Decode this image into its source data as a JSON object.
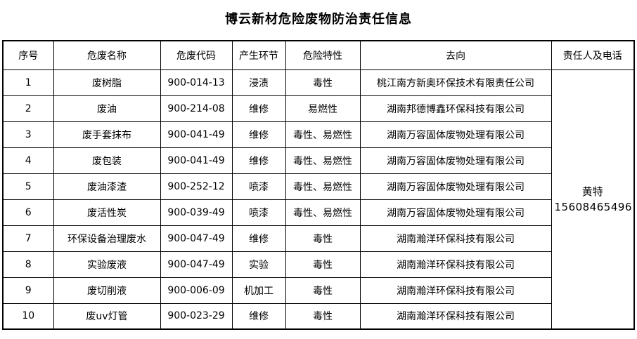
{
  "page": {
    "title": "博云新材危险废物防治责任信息"
  },
  "table": {
    "headers": {
      "no": "序号",
      "name": "危废名称",
      "code": "危废代码",
      "stage": "产生环节",
      "hazard": "危险特性",
      "destination": "去向",
      "contact": "责任人及电话"
    },
    "rows": [
      {
        "no": "1",
        "name": "废树脂",
        "code": "900-014-13",
        "stage": "浸渍",
        "hazard": "毒性",
        "destination": "桃江南方新奥环保技术有限责任公司"
      },
      {
        "no": "2",
        "name": "废油",
        "code": "900-214-08",
        "stage": "维修",
        "hazard": "易燃性",
        "destination": "湖南邦德博鑫环保科技有限公司"
      },
      {
        "no": "3",
        "name": "废手套抹布",
        "code": "900-041-49",
        "stage": "维修",
        "hazard": "毒性、易燃性",
        "destination": "湖南万容固体废物处理有限公司"
      },
      {
        "no": "4",
        "name": "废包装",
        "code": "900-041-49",
        "stage": "维修",
        "hazard": "毒性、易燃性",
        "destination": "湖南万容固体废物处理有限公司"
      },
      {
        "no": "5",
        "name": "废油漆渣",
        "code": "900-252-12",
        "stage": "喷漆",
        "hazard": "毒性、易燃性",
        "destination": "湖南万容固体废物处理有限公司"
      },
      {
        "no": "6",
        "name": "废活性炭",
        "code": "900-039-49",
        "stage": "喷漆",
        "hazard": "毒性、易燃性",
        "destination": "湖南万容固体废物处理有限公司"
      },
      {
        "no": "7",
        "name": "环保设备治理废水",
        "code": "900-047-49",
        "stage": "维修",
        "hazard": "毒性",
        "destination": "湖南瀚洋环保科技有限公司"
      },
      {
        "no": "8",
        "name": "实验废液",
        "code": "900-047-49",
        "stage": "实验",
        "hazard": "毒性",
        "destination": "湖南瀚洋环保科技有限公司"
      },
      {
        "no": "9",
        "name": "废切削液",
        "code": "900-006-09",
        "stage": "机加工",
        "hazard": "毒性",
        "destination": "湖南瀚洋环保科技有限公司"
      },
      {
        "no": "10",
        "name": "废uv灯管",
        "code": "900-023-29",
        "stage": "维修",
        "hazard": "毒性",
        "destination": "湖南瀚洋环保科技有限公司"
      }
    ],
    "responsible": {
      "name": "黄特",
      "phone": "15608465496"
    }
  }
}
